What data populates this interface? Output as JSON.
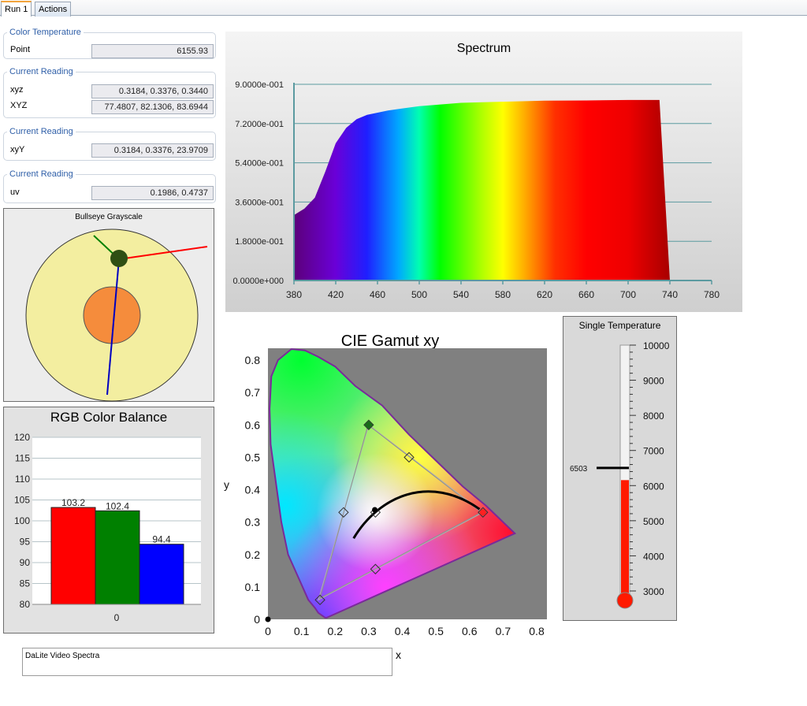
{
  "tabs": [
    "Run 1",
    "Actions"
  ],
  "readings": {
    "color_temperature": {
      "title": "Color Temperature",
      "label": "Point",
      "value": "6155.93"
    },
    "current_reading_xyz": {
      "title": "Current Reading",
      "xyz_label": "xyz",
      "xyz_value": "0.3184, 0.3376, 0.3440",
      "XYZ_label": "XYZ",
      "XYZ_value": "77.4807, 82.1306, 83.6944"
    },
    "current_reading_xyY": {
      "title": "Current Reading",
      "label": "xyY",
      "value": "0.3184, 0.3376, 23.9709"
    },
    "current_reading_uv": {
      "title": "Current Reading",
      "label": "uv",
      "value": "0.1986, 0.4737"
    }
  },
  "bullseye": {
    "title": "Bullseye Grayscale",
    "colors": {
      "outer": "#f3eea0",
      "inner": "#f58c3c",
      "marker": "#2f4f14",
      "red": "#ff0000",
      "green": "#008000",
      "blue": "#0000c0"
    }
  },
  "spectrum": {
    "title": "Spectrum",
    "x_ticks": [
      "380",
      "420",
      "460",
      "500",
      "540",
      "580",
      "620",
      "660",
      "700",
      "740",
      "780"
    ],
    "y_ticks": [
      "0.0000e+000",
      "1.8000e-001",
      "3.6000e-001",
      "5.4000e-001",
      "7.2000e-001",
      "9.0000e-001"
    ]
  },
  "rgb_balance": {
    "title": "RGB Color Balance",
    "y_ticks": [
      "80",
      "85",
      "90",
      "95",
      "100",
      "105",
      "110",
      "115",
      "120"
    ],
    "bars": [
      {
        "label": "103.2",
        "value": 103.2,
        "color": "#ff0000"
      },
      {
        "label": "102.4",
        "value": 102.4,
        "color": "#008000"
      },
      {
        "label": "94.4",
        "value": 94.4,
        "color": "#0000ff"
      }
    ],
    "category": "0"
  },
  "cie": {
    "title": "CIE Gamut xy",
    "x_label": "x",
    "y_label": "y",
    "x_ticks": [
      "0",
      "0.1",
      "0.2",
      "0.3",
      "0.4",
      "0.5",
      "0.6",
      "0.7",
      "0.8"
    ],
    "y_ticks": [
      "0",
      "0.1",
      "0.2",
      "0.3",
      "0.4",
      "0.5",
      "0.6",
      "0.7",
      "0.8"
    ]
  },
  "thermometer": {
    "title": "Single Temperature",
    "ticks": [
      "10000",
      "9000",
      "8000",
      "7000",
      "6000",
      "5000",
      "4000",
      "3000"
    ],
    "target_label": "6503",
    "fill_value": 6156,
    "fill_color": "#ff1a00"
  },
  "notes": "DaLite Video Spectra"
}
